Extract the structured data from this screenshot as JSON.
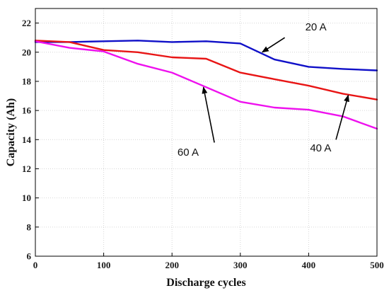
{
  "chart_data": {
    "type": "line",
    "xlabel": "Discharge cycles",
    "ylabel": "Capacity (Ah)",
    "xlim": [
      0,
      500
    ],
    "ylim": [
      6,
      23
    ],
    "xticks": [
      0,
      100,
      200,
      300,
      400,
      500
    ],
    "yticks": [
      6,
      8,
      10,
      12,
      14,
      16,
      18,
      20,
      22
    ],
    "grid": true,
    "legend": "none",
    "series": [
      {
        "name": "20 A",
        "color": "#1010c8",
        "x": [
          0,
          50,
          100,
          150,
          200,
          250,
          300,
          350,
          400,
          450,
          500
        ],
        "y": [
          20.7,
          20.7,
          20.75,
          20.8,
          20.7,
          20.75,
          20.6,
          19.5,
          19.0,
          18.85,
          18.75
        ]
      },
      {
        "name": "40 A",
        "color": "#e81515",
        "x": [
          0,
          50,
          100,
          150,
          200,
          250,
          300,
          350,
          400,
          450,
          500
        ],
        "y": [
          20.8,
          20.7,
          20.15,
          20.0,
          19.65,
          19.55,
          18.6,
          18.15,
          17.7,
          17.15,
          16.75
        ]
      },
      {
        "name": "60 A",
        "color": "#ee11ee",
        "x": [
          0,
          50,
          100,
          150,
          200,
          250,
          300,
          350,
          400,
          450,
          500
        ],
        "y": [
          20.75,
          20.3,
          20.05,
          19.2,
          18.6,
          17.6,
          16.6,
          16.2,
          16.05,
          15.6,
          14.75
        ]
      }
    ],
    "annotations": [
      {
        "text": "20 A",
        "text_at": [
          395,
          21.5
        ],
        "arrow_from": [
          365,
          21.0
        ],
        "arrow_to": [
          332,
          20.0
        ]
      },
      {
        "text": "40 A",
        "text_at": [
          402,
          13.2
        ],
        "arrow_from": [
          440,
          14.0
        ],
        "arrow_to": [
          458,
          17.05
        ]
      },
      {
        "text": "60 A",
        "text_at": [
          208,
          12.9
        ],
        "arrow_from": [
          262,
          13.8
        ],
        "arrow_to": [
          246,
          17.6
        ]
      }
    ]
  }
}
